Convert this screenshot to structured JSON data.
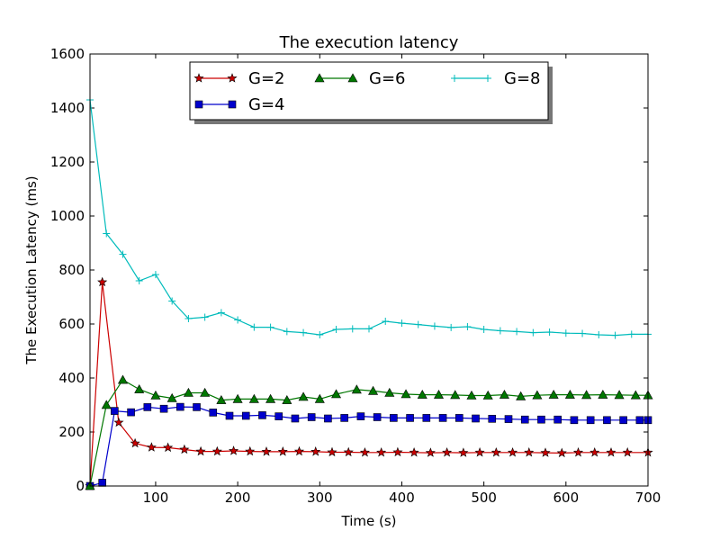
{
  "chart_data": {
    "type": "line",
    "title": "The execution latency",
    "xlabel": "Time (s)",
    "ylabel": "The Execution Latency (ms)",
    "xlim": [
      20,
      700
    ],
    "ylim": [
      0,
      1600
    ],
    "xticks": [
      100,
      200,
      300,
      400,
      500,
      600,
      700
    ],
    "yticks": [
      0,
      200,
      400,
      600,
      800,
      1000,
      1200,
      1400,
      1600
    ],
    "grid": false,
    "legend_position": "top-center",
    "x": [
      20,
      40,
      60,
      80,
      100,
      120,
      140,
      160,
      180,
      200,
      220,
      240,
      260,
      280,
      300,
      320,
      340,
      360,
      380,
      400,
      420,
      440,
      460,
      480,
      500,
      520,
      540,
      560,
      580,
      600,
      620,
      640,
      660,
      680,
      700
    ],
    "series": [
      {
        "name": "G=2",
        "color": "#cc0000",
        "marker": "star",
        "x": [
          20,
          35,
          55,
          75,
          95,
          115,
          135,
          155,
          175,
          195,
          215,
          235,
          255,
          275,
          295,
          315,
          335,
          355,
          375,
          395,
          415,
          435,
          455,
          475,
          495,
          515,
          535,
          555,
          575,
          595,
          615,
          635,
          655,
          675,
          700
        ],
        "values": [
          0,
          755,
          235,
          158,
          143,
          142,
          135,
          128,
          128,
          130,
          128,
          127,
          127,
          128,
          127,
          125,
          125,
          124,
          124,
          125,
          124,
          123,
          124,
          123,
          124,
          124,
          124,
          124,
          123,
          122,
          124,
          124,
          124,
          124,
          124
        ]
      },
      {
        "name": "G=4",
        "color": "#0000cc",
        "marker": "square",
        "x": [
          20,
          35,
          50,
          70,
          90,
          110,
          130,
          150,
          170,
          190,
          210,
          230,
          250,
          270,
          290,
          310,
          330,
          350,
          370,
          390,
          410,
          430,
          450,
          470,
          490,
          510,
          530,
          550,
          570,
          590,
          610,
          630,
          650,
          670,
          690,
          700
        ],
        "values": [
          0,
          12,
          278,
          273,
          292,
          286,
          293,
          292,
          272,
          260,
          260,
          262,
          258,
          250,
          255,
          250,
          252,
          258,
          255,
          252,
          252,
          252,
          252,
          252,
          250,
          249,
          248,
          246,
          246,
          246,
          244,
          244,
          244,
          244,
          244,
          244
        ]
      },
      {
        "name": "G=6",
        "color": "#007700",
        "marker": "triangle",
        "x": [
          20,
          40,
          60,
          80,
          100,
          120,
          140,
          160,
          180,
          200,
          220,
          240,
          260,
          280,
          300,
          320,
          345,
          365,
          385,
          405,
          425,
          445,
          465,
          485,
          505,
          525,
          545,
          565,
          585,
          605,
          625,
          645,
          665,
          685,
          700
        ],
        "values": [
          0,
          300,
          393,
          358,
          335,
          325,
          345,
          345,
          318,
          322,
          322,
          322,
          318,
          330,
          322,
          340,
          357,
          352,
          345,
          340,
          338,
          338,
          337,
          335,
          335,
          338,
          332,
          336,
          338,
          338,
          337,
          338,
          337,
          336,
          336
        ]
      },
      {
        "name": "G=8",
        "color": "#00bbbb",
        "marker": "plus",
        "x": [
          20,
          40,
          60,
          80,
          100,
          120,
          140,
          160,
          180,
          200,
          220,
          240,
          260,
          280,
          300,
          320,
          340,
          360,
          380,
          400,
          420,
          440,
          460,
          480,
          500,
          520,
          540,
          560,
          580,
          600,
          620,
          640,
          660,
          680,
          700
        ],
        "values": [
          1430,
          935,
          858,
          760,
          783,
          685,
          620,
          625,
          642,
          615,
          588,
          588,
          572,
          568,
          560,
          580,
          582,
          582,
          610,
          603,
          598,
          592,
          587,
          590,
          580,
          575,
          572,
          568,
          570,
          566,
          565,
          560,
          558,
          562,
          562
        ]
      }
    ]
  }
}
